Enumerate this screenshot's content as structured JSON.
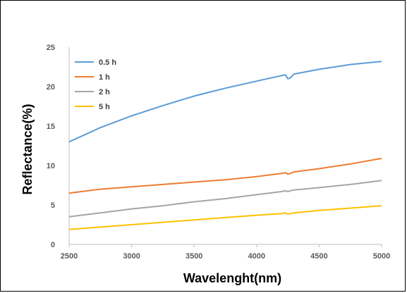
{
  "chart_data": {
    "type": "line",
    "title": "",
    "xlabel": "Wavelenght(nm)",
    "ylabel": "Reflectance(%)",
    "xlim": [
      2500,
      5000
    ],
    "ylim": [
      0,
      25
    ],
    "xticks": [
      "2500",
      "3000",
      "3500",
      "4000",
      "4500",
      "5000"
    ],
    "yticks": [
      "0",
      "5",
      "10",
      "15",
      "20",
      "25"
    ],
    "grid": false,
    "legend_position": "top-left",
    "series": [
      {
        "name": "0.5 h",
        "color": "#5B9BD5",
        "x": [
          2500,
          2750,
          3000,
          3250,
          3500,
          3750,
          4000,
          4200,
          4230,
          4250,
          4270,
          4300,
          4500,
          4750,
          5000
        ],
        "y": [
          13.0,
          14.8,
          16.3,
          17.6,
          18.8,
          19.8,
          20.7,
          21.4,
          21.5,
          21.0,
          21.1,
          21.6,
          22.2,
          22.8,
          23.2
        ]
      },
      {
        "name": "1 h",
        "color": "#ED7D31",
        "x": [
          2500,
          2750,
          3000,
          3250,
          3500,
          3750,
          4000,
          4200,
          4230,
          4250,
          4270,
          4300,
          4500,
          4750,
          5000
        ],
        "y": [
          6.5,
          7.0,
          7.3,
          7.6,
          7.9,
          8.2,
          8.6,
          9.0,
          9.1,
          8.9,
          9.0,
          9.2,
          9.6,
          10.2,
          10.9
        ]
      },
      {
        "name": "2 h",
        "color": "#A5A5A5",
        "x": [
          2500,
          2750,
          3000,
          3250,
          3500,
          3750,
          4000,
          4200,
          4230,
          4250,
          4270,
          4300,
          4500,
          4750,
          5000
        ],
        "y": [
          3.5,
          4.0,
          4.5,
          4.9,
          5.4,
          5.8,
          6.3,
          6.7,
          6.8,
          6.7,
          6.8,
          6.9,
          7.2,
          7.6,
          8.1
        ]
      },
      {
        "name": "5 h",
        "color": "#FFC000",
        "x": [
          2500,
          2750,
          3000,
          3250,
          3500,
          3750,
          4000,
          4200,
          4230,
          4250,
          4270,
          4300,
          4500,
          4750,
          5000
        ],
        "y": [
          1.9,
          2.2,
          2.5,
          2.8,
          3.1,
          3.4,
          3.7,
          3.9,
          4.0,
          3.85,
          3.9,
          4.0,
          4.3,
          4.6,
          4.9
        ]
      }
    ]
  }
}
